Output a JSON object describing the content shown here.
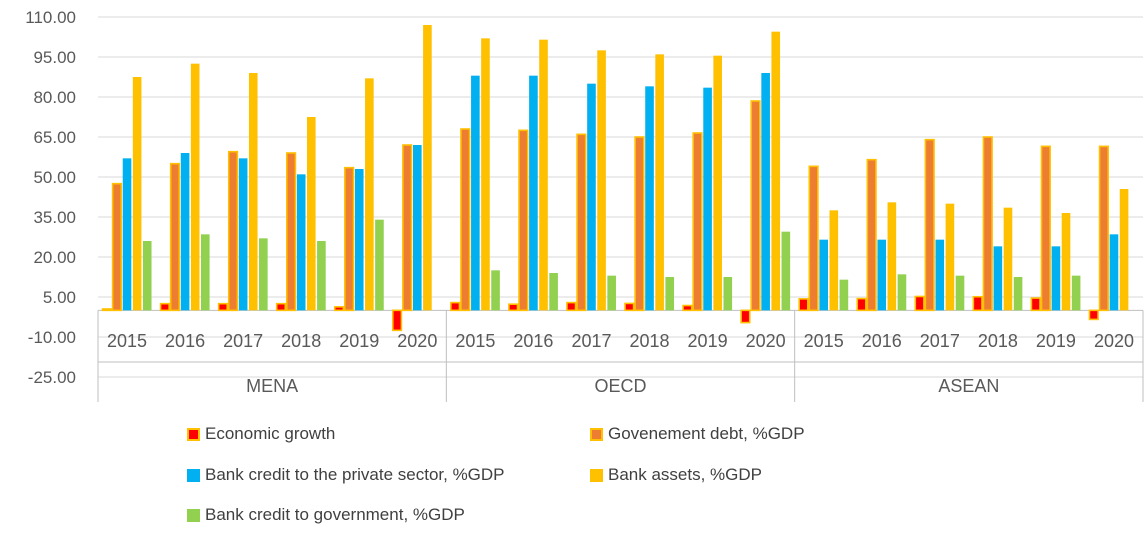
{
  "chart_data": {
    "type": "bar",
    "y_axis": {
      "min": -25,
      "max": 110,
      "step": 15,
      "tick_labels": [
        "110.00",
        "95.00",
        "80.00",
        "65.00",
        "50.00",
        "35.00",
        "20.00",
        "5.00",
        "-10.00",
        "-25.00"
      ]
    },
    "groups": [
      {
        "label": "MENA",
        "years": [
          "2015",
          "2016",
          "2017",
          "2018",
          "2019",
          "2020"
        ]
      },
      {
        "label": "OECD",
        "years": [
          "2015",
          "2016",
          "2017",
          "2018",
          "2019",
          "2020"
        ]
      },
      {
        "label": "ASEAN",
        "years": [
          "2015",
          "2016",
          "2017",
          "2018",
          "2019",
          "2020"
        ]
      }
    ],
    "series": [
      {
        "name": "Economic growth",
        "color": "#ff0000",
        "border": "#ffc000",
        "values": [
          0.5,
          2.5,
          2.5,
          2.5,
          1.3,
          -7.5,
          2.9,
          2.3,
          2.9,
          2.6,
          1.8,
          -4.6,
          4.3,
          4.4,
          5.2,
          5.1,
          4.6,
          -3.4
        ]
      },
      {
        "name": "Govenement debt, %GDP",
        "color": "#ed7d31",
        "border": "#ffc000",
        "values": [
          47.5,
          55,
          59.5,
          59,
          53.5,
          62,
          68,
          67.5,
          66,
          65,
          66.5,
          78.5,
          54,
          56.5,
          64,
          65,
          61.5,
          61.5
        ]
      },
      {
        "name": "Bank credit to the private sector, %GDP",
        "color": "#00b0f0",
        "values": [
          57,
          59,
          57,
          51,
          53,
          62,
          88,
          88,
          85,
          84,
          83.5,
          89,
          26.5,
          26.5,
          26.5,
          24,
          24,
          28.5
        ]
      },
      {
        "name": "Bank assets, %GDP",
        "color": "#ffc000",
        "values": [
          87.5,
          92.5,
          89,
          72.5,
          87,
          107,
          102,
          101.5,
          97.5,
          96,
          95.5,
          104.5,
          37.5,
          40.5,
          40,
          38.5,
          36.5,
          45.5
        ]
      },
      {
        "name": "Bank credit to government, %GDP",
        "color": "#92d050",
        "values": [
          26,
          28.5,
          27,
          26,
          34,
          0,
          15,
          14,
          13,
          12.5,
          12.5,
          29.5,
          11.5,
          13.5,
          13,
          12.5,
          13,
          0
        ]
      }
    ],
    "grid": true,
    "legend_position": "bottom"
  }
}
